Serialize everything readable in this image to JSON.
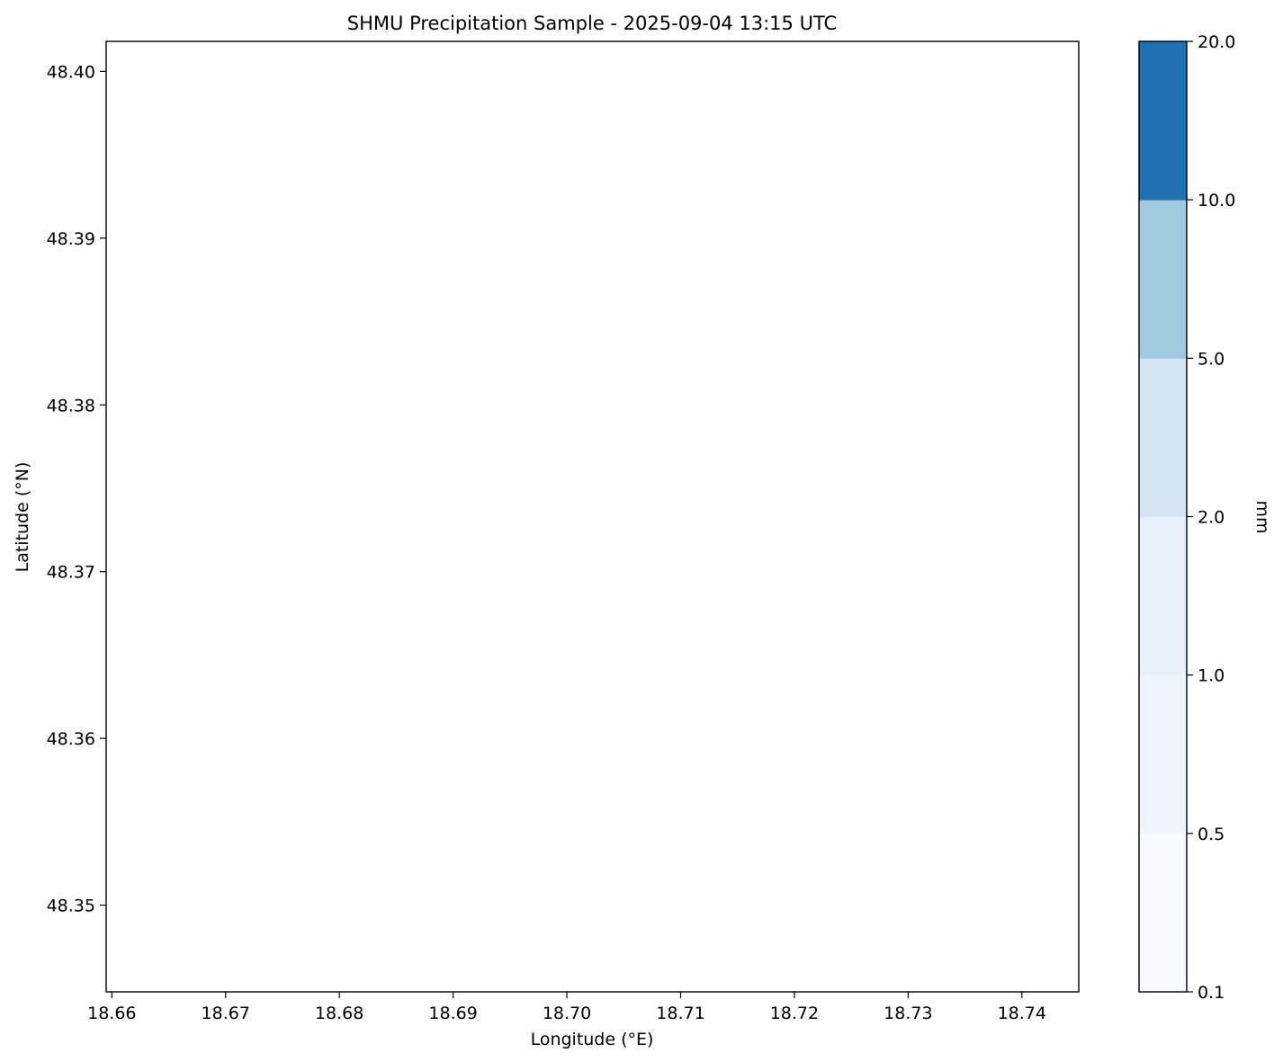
{
  "chart_data": {
    "type": "heatmap",
    "title": "SHMU Precipitation Sample - 2025-09-04 13:15 UTC",
    "xlabel": "Longitude (°E)",
    "ylabel": "Latitude (°N)",
    "xlim": [
      18.6595,
      18.745
    ],
    "ylim": [
      48.3448,
      48.4018
    ],
    "x_ticks": [
      "18.66",
      "18.67",
      "18.68",
      "18.69",
      "18.70",
      "18.71",
      "18.72",
      "18.73",
      "18.74"
    ],
    "x_tick_values": [
      18.66,
      18.67,
      18.68,
      18.69,
      18.7,
      18.71,
      18.72,
      18.73,
      18.74
    ],
    "y_ticks": [
      "48.35",
      "48.36",
      "48.37",
      "48.38",
      "48.39",
      "48.40"
    ],
    "y_tick_values": [
      48.35,
      48.36,
      48.37,
      48.38,
      48.39,
      48.4
    ],
    "values": [],
    "grid": false,
    "colorbar": {
      "label": "mm",
      "boundaries": [
        "0.1",
        "0.5",
        "1.0",
        "2.0",
        "5.0",
        "10.0",
        "20.0"
      ],
      "colors": [
        "#f7fbff",
        "#eff5fc",
        "#e8f1fa",
        "#d4e4f3",
        "#a1cae1",
        "#2172b5"
      ]
    }
  }
}
